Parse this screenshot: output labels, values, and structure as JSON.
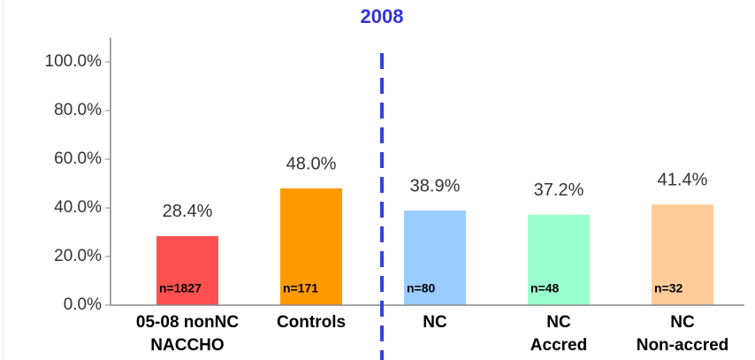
{
  "chart_data": {
    "type": "bar",
    "title": "2008",
    "categories": [
      "05-08 nonNC\nNACCHO",
      "Controls",
      "NC",
      "NC\nAccred",
      "NC\nNon-accred"
    ],
    "values": [
      28.4,
      48.0,
      38.9,
      37.2,
      41.4
    ],
    "value_labels": [
      "28.4%",
      "48.0%",
      "38.9%",
      "37.2%",
      "41.4%"
    ],
    "n_labels": [
      "n=1827",
      "n=171",
      "n=80",
      "n=48",
      "n=32"
    ],
    "colors": [
      "#ff5050",
      "#ff9900",
      "#99ccff",
      "#99ffcc",
      "#ffcc99"
    ],
    "ylim": [
      0,
      110
    ],
    "yticks": [
      {
        "value": 0,
        "label": "0.0%"
      },
      {
        "value": 20,
        "label": "20.0%"
      },
      {
        "value": 40,
        "label": "40.0%"
      },
      {
        "value": 60,
        "label": "60.0%"
      },
      {
        "value": 80,
        "label": "80.0%"
      },
      {
        "value": 100,
        "label": "100.0%"
      }
    ],
    "grid": false
  }
}
